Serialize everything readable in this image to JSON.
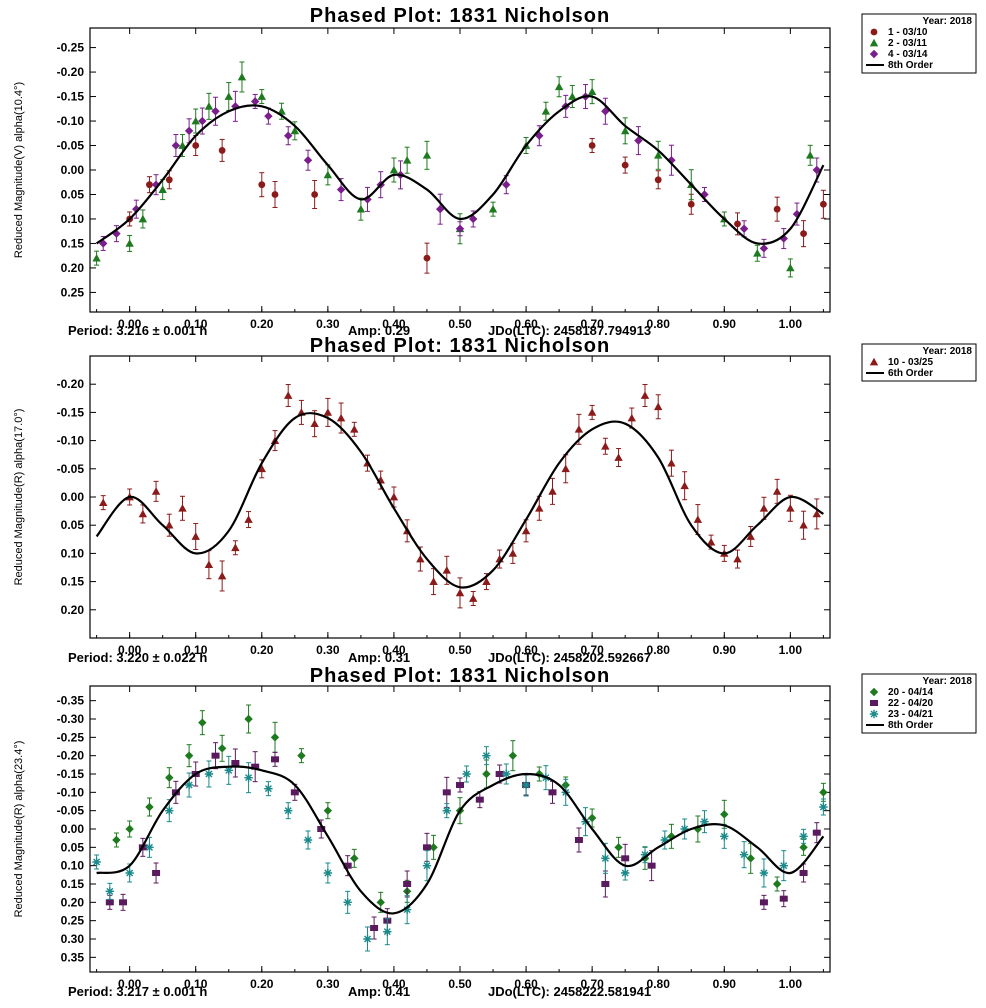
{
  "chart_data": [
    {
      "type": "scatter",
      "title": "Phased Plot: 1831 Nicholson",
      "ylabel": "Reduced Magnitude(V) alpha(10.4°)",
      "xlim": [
        -0.06,
        1.06
      ],
      "ylim": [
        0.29,
        -0.29
      ],
      "y_inverted": true,
      "x_ticks": [
        "0.00",
        "0.10",
        "0.20",
        "0.30",
        "0.40",
        "0.50",
        "0.60",
        "0.70",
        "0.80",
        "0.90",
        "1.00"
      ],
      "y_ticks": [
        "-0.25",
        "-0.20",
        "-0.15",
        "-0.10",
        "-0.05",
        "0.00",
        "0.05",
        "0.10",
        "0.15",
        "0.20",
        "0.25"
      ],
      "period": "Period: 3.216 ± 0.001 h",
      "amp": "Amp: 0.29",
      "jdo": "JDo(LTC): 2458187.794913",
      "legend": {
        "header": "Year: 2018",
        "items": [
          {
            "label": "1 - 03/10",
            "marker": "circle",
            "color": "#8b1a1a"
          },
          {
            "label": "2 - 03/11",
            "marker": "triangle",
            "color": "#1e7a1e"
          },
          {
            "label": "4 - 03/14",
            "marker": "diamond",
            "color": "#7a1e8c"
          },
          {
            "label": "8th Order",
            "marker": "line",
            "color": "#000000"
          }
        ]
      },
      "fit": {
        "x": [
          -0.05,
          0.0,
          0.05,
          0.1,
          0.15,
          0.2,
          0.25,
          0.3,
          0.35,
          0.4,
          0.45,
          0.5,
          0.55,
          0.6,
          0.65,
          0.7,
          0.75,
          0.8,
          0.85,
          0.9,
          0.95,
          1.0,
          1.05
        ],
        "y": [
          0.15,
          0.1,
          0.02,
          -0.07,
          -0.12,
          -0.13,
          -0.09,
          -0.01,
          0.06,
          0.01,
          0.04,
          0.1,
          0.05,
          -0.05,
          -0.12,
          -0.15,
          -0.09,
          -0.04,
          0.03,
          0.1,
          0.15,
          0.12,
          -0.01
        ]
      },
      "series": [
        {
          "name": "1 - 03/10",
          "marker": "circle",
          "color": "#8b1a1a",
          "x": [
            0.0,
            0.03,
            0.06,
            0.1,
            0.14,
            0.2,
            0.22,
            0.28,
            0.45,
            0.7,
            0.75,
            0.8,
            0.85,
            0.92,
            0.98,
            1.02,
            1.05
          ],
          "y": [
            0.1,
            0.03,
            0.02,
            -0.05,
            -0.04,
            0.03,
            0.05,
            0.05,
            0.18,
            -0.05,
            -0.01,
            0.02,
            0.07,
            0.11,
            0.08,
            0.13,
            0.07
          ]
        },
        {
          "name": "2 - 03/11",
          "marker": "triangle",
          "color": "#1e7a1e",
          "x": [
            -0.05,
            0.0,
            0.02,
            0.05,
            0.08,
            0.1,
            0.12,
            0.15,
            0.17,
            0.2,
            0.23,
            0.25,
            0.3,
            0.35,
            0.4,
            0.42,
            0.45,
            0.5,
            0.55,
            0.6,
            0.63,
            0.65,
            0.67,
            0.7,
            0.75,
            0.8,
            0.85,
            0.9,
            0.95,
            1.0,
            1.03
          ],
          "y": [
            0.18,
            0.15,
            0.1,
            0.04,
            -0.05,
            -0.1,
            -0.13,
            -0.15,
            -0.19,
            -0.15,
            -0.12,
            -0.08,
            0.01,
            0.08,
            0.0,
            -0.02,
            -0.03,
            0.12,
            0.08,
            -0.05,
            -0.12,
            -0.17,
            -0.15,
            -0.16,
            -0.08,
            -0.03,
            0.03,
            0.1,
            0.17,
            0.2,
            -0.03
          ]
        },
        {
          "name": "4 - 03/14",
          "marker": "diamond",
          "color": "#7a1e8c",
          "x": [
            -0.04,
            -0.02,
            0.01,
            0.04,
            0.07,
            0.09,
            0.11,
            0.13,
            0.16,
            0.19,
            0.21,
            0.24,
            0.27,
            0.32,
            0.36,
            0.38,
            0.41,
            0.47,
            0.5,
            0.52,
            0.57,
            0.62,
            0.66,
            0.69,
            0.72,
            0.77,
            0.82,
            0.87,
            0.93,
            0.96,
            0.99,
            1.01,
            1.04
          ],
          "y": [
            0.15,
            0.13,
            0.08,
            0.03,
            -0.05,
            -0.08,
            -0.1,
            -0.12,
            -0.13,
            -0.14,
            -0.11,
            -0.07,
            -0.02,
            0.04,
            0.06,
            0.03,
            0.01,
            0.08,
            0.12,
            0.1,
            0.03,
            -0.07,
            -0.13,
            -0.15,
            -0.12,
            -0.06,
            -0.02,
            0.05,
            0.12,
            0.16,
            0.14,
            0.09,
            0.0
          ]
        }
      ]
    },
    {
      "type": "scatter",
      "title": "Phased Plot: 1831 Nicholson",
      "ylabel": "Reduced Magnitude(R) alpha(17.0°)",
      "xlim": [
        -0.06,
        1.06
      ],
      "ylim": [
        0.25,
        -0.25
      ],
      "y_inverted": true,
      "x_ticks": [
        "0.00",
        "0.10",
        "0.20",
        "0.30",
        "0.40",
        "0.50",
        "0.60",
        "0.70",
        "0.80",
        "0.90",
        "1.00"
      ],
      "y_ticks": [
        "-0.20",
        "-0.15",
        "-0.10",
        "-0.05",
        "0.00",
        "0.05",
        "0.10",
        "0.15",
        "0.20"
      ],
      "period": "Period: 3.220 ± 0.022 h",
      "amp": "Amp: 0.31",
      "jdo": "JDo(LTC): 2458202.592667",
      "legend": {
        "header": "Year: 2018",
        "items": [
          {
            "label": "10 - 03/25",
            "marker": "triangle",
            "color": "#8b1a1a"
          },
          {
            "label": "6th Order",
            "marker": "line",
            "color": "#000000"
          }
        ]
      },
      "fit": {
        "x": [
          -0.05,
          0.0,
          0.05,
          0.1,
          0.15,
          0.2,
          0.25,
          0.3,
          0.35,
          0.4,
          0.45,
          0.5,
          0.55,
          0.6,
          0.65,
          0.7,
          0.75,
          0.8,
          0.85,
          0.9,
          0.95,
          1.0,
          1.05
        ],
        "y": [
          0.07,
          0.0,
          0.05,
          0.1,
          0.06,
          -0.06,
          -0.14,
          -0.14,
          -0.08,
          0.02,
          0.11,
          0.16,
          0.13,
          0.04,
          -0.06,
          -0.12,
          -0.13,
          -0.07,
          0.05,
          0.1,
          0.05,
          0.0,
          0.03
        ]
      },
      "series": [
        {
          "name": "10 - 03/25",
          "marker": "triangle",
          "color": "#8b1a1a",
          "x": [
            -0.04,
            0.0,
            0.02,
            0.04,
            0.06,
            0.08,
            0.1,
            0.12,
            0.14,
            0.16,
            0.18,
            0.2,
            0.22,
            0.24,
            0.26,
            0.28,
            0.3,
            0.32,
            0.34,
            0.36,
            0.38,
            0.4,
            0.42,
            0.44,
            0.46,
            0.48,
            0.5,
            0.52,
            0.54,
            0.56,
            0.58,
            0.6,
            0.62,
            0.64,
            0.66,
            0.68,
            0.7,
            0.72,
            0.74,
            0.76,
            0.78,
            0.8,
            0.82,
            0.84,
            0.86,
            0.88,
            0.9,
            0.92,
            0.94,
            0.96,
            0.98,
            1.0,
            1.02,
            1.04
          ],
          "y": [
            0.01,
            0.0,
            0.03,
            -0.01,
            0.05,
            0.02,
            0.07,
            0.12,
            0.14,
            0.09,
            0.04,
            -0.05,
            -0.1,
            -0.18,
            -0.15,
            -0.13,
            -0.15,
            -0.14,
            -0.12,
            -0.06,
            -0.03,
            0.0,
            0.06,
            0.11,
            0.15,
            0.13,
            0.17,
            0.18,
            0.15,
            0.11,
            0.1,
            0.06,
            0.02,
            -0.01,
            -0.05,
            -0.12,
            -0.15,
            -0.09,
            -0.07,
            -0.14,
            -0.18,
            -0.16,
            -0.06,
            -0.02,
            0.04,
            0.08,
            0.1,
            0.11,
            0.07,
            0.02,
            -0.01,
            0.02,
            0.05,
            0.03
          ]
        }
      ]
    },
    {
      "type": "scatter",
      "title": "Phased Plot: 1831 Nicholson",
      "ylabel": "Reduced Magnitude(R) alpha(23.4°)",
      "xlim": [
        -0.06,
        1.06
      ],
      "ylim": [
        0.39,
        -0.39
      ],
      "y_inverted": true,
      "x_ticks": [
        "0.00",
        "0.10",
        "0.20",
        "0.30",
        "0.40",
        "0.50",
        "0.60",
        "0.70",
        "0.80",
        "0.90",
        "1.00"
      ],
      "y_ticks": [
        "-0.35",
        "-0.30",
        "-0.25",
        "-0.20",
        "-0.15",
        "-0.10",
        "-0.05",
        "0.00",
        "0.05",
        "0.10",
        "0.15",
        "0.20",
        "0.25",
        "0.30",
        "0.35"
      ],
      "period": "Period: 3.217 ± 0.001 h",
      "amp": "Amp: 0.41",
      "jdo": "JDo(LTC): 2458222.581941",
      "legend": {
        "header": "Year: 2018",
        "items": [
          {
            "label": "20 - 04/14",
            "marker": "diamond",
            "color": "#1e7a1e"
          },
          {
            "label": "22 - 04/20",
            "marker": "square",
            "color": "#5a1a5e"
          },
          {
            "label": "23 - 04/21",
            "marker": "asterisk",
            "color": "#1a8a8a"
          },
          {
            "label": "8th Order",
            "marker": "line",
            "color": "#000000"
          }
        ]
      },
      "fit": {
        "x": [
          -0.05,
          0.0,
          0.05,
          0.1,
          0.15,
          0.2,
          0.25,
          0.3,
          0.35,
          0.4,
          0.45,
          0.5,
          0.55,
          0.6,
          0.65,
          0.7,
          0.75,
          0.8,
          0.85,
          0.9,
          0.95,
          1.0,
          1.05
        ],
        "y": [
          0.12,
          0.1,
          -0.05,
          -0.15,
          -0.17,
          -0.16,
          -0.12,
          0.02,
          0.17,
          0.23,
          0.15,
          -0.05,
          -0.12,
          -0.15,
          -0.12,
          0.0,
          0.1,
          0.05,
          0.0,
          -0.01,
          0.05,
          0.12,
          0.02
        ]
      },
      "series": [
        {
          "name": "20 - 04/14",
          "marker": "diamond",
          "color": "#1e7a1e",
          "x": [
            -0.02,
            0.0,
            0.03,
            0.06,
            0.09,
            0.11,
            0.14,
            0.18,
            0.22,
            0.26,
            0.3,
            0.34,
            0.38,
            0.42,
            0.46,
            0.5,
            0.54,
            0.58,
            0.62,
            0.66,
            0.7,
            0.74,
            0.78,
            0.82,
            0.86,
            0.9,
            0.94,
            0.98,
            1.02,
            1.05
          ],
          "y": [
            0.03,
            0.0,
            -0.06,
            -0.14,
            -0.2,
            -0.29,
            -0.22,
            -0.3,
            -0.25,
            -0.2,
            -0.05,
            0.08,
            0.2,
            0.17,
            0.05,
            -0.05,
            -0.15,
            -0.2,
            -0.15,
            -0.12,
            -0.03,
            0.05,
            0.08,
            0.02,
            0.0,
            -0.04,
            0.08,
            0.15,
            0.05,
            -0.1
          ]
        },
        {
          "name": "22 - 04/20",
          "marker": "square",
          "color": "#5a1a5e",
          "x": [
            -0.03,
            -0.01,
            0.02,
            0.04,
            0.07,
            0.1,
            0.13,
            0.16,
            0.19,
            0.22,
            0.25,
            0.29,
            0.33,
            0.37,
            0.39,
            0.42,
            0.45,
            0.48,
            0.5,
            0.53,
            0.56,
            0.6,
            0.64,
            0.68,
            0.72,
            0.75,
            0.79,
            0.96,
            0.99,
            1.02,
            1.04
          ],
          "y": [
            0.2,
            0.2,
            0.05,
            0.12,
            -0.1,
            -0.15,
            -0.2,
            -0.18,
            -0.17,
            -0.19,
            -0.1,
            0.0,
            0.1,
            0.27,
            0.25,
            0.15,
            0.05,
            -0.1,
            -0.12,
            -0.08,
            -0.15,
            -0.12,
            -0.1,
            0.03,
            0.15,
            0.08,
            0.1,
            0.2,
            0.19,
            0.12,
            0.01
          ]
        },
        {
          "name": "23 - 04/21",
          "marker": "asterisk",
          "color": "#1a8a8a",
          "x": [
            -0.05,
            -0.03,
            0.0,
            0.03,
            0.06,
            0.09,
            0.12,
            0.15,
            0.18,
            0.21,
            0.24,
            0.27,
            0.3,
            0.33,
            0.36,
            0.39,
            0.42,
            0.45,
            0.48,
            0.51,
            0.54,
            0.57,
            0.6,
            0.63,
            0.66,
            0.69,
            0.72,
            0.75,
            0.78,
            0.81,
            0.84,
            0.87,
            0.9,
            0.93,
            0.96,
            0.99,
            1.02,
            1.05
          ],
          "y": [
            0.09,
            0.17,
            0.12,
            0.05,
            -0.05,
            -0.12,
            -0.15,
            -0.16,
            -0.14,
            -0.11,
            -0.05,
            0.03,
            0.12,
            0.2,
            0.3,
            0.28,
            0.22,
            0.1,
            -0.05,
            -0.15,
            -0.2,
            -0.15,
            -0.12,
            -0.14,
            -0.1,
            -0.02,
            0.08,
            0.12,
            0.07,
            0.03,
            0.0,
            -0.02,
            0.02,
            0.07,
            0.12,
            0.1,
            0.02,
            -0.06
          ]
        }
      ]
    }
  ]
}
